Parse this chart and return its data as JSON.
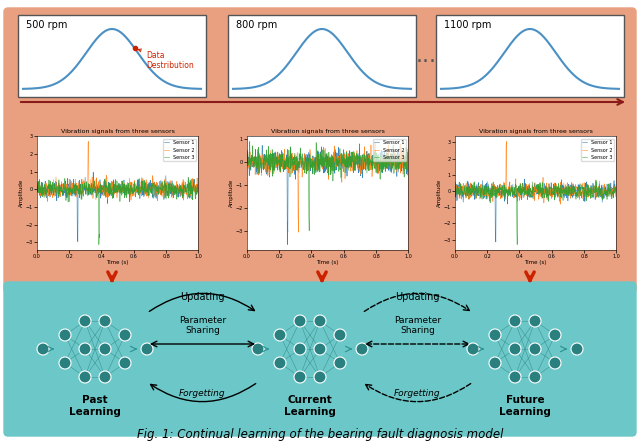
{
  "bg_color": "#ffffff",
  "salmon_bg": "#e8a080",
  "teal_bg": "#6cc8c8",
  "panel_bg": "#ffffff",
  "node_color": "#2a7f7f",
  "node_edge": "#ffffff",
  "arrow_color": "#cc2200",
  "line_color": "#333333",
  "teal_line": "#2a9090",
  "caption": "Fig. 1: Continual learning of the bearing fault diagnosis model",
  "rpm_labels": [
    "500 rpm",
    "800 rpm",
    "1100 rpm"
  ],
  "sensor_title": "Vibration signals from three sensors",
  "sensor_labels": [
    "Sensor 1",
    "Sensor 2",
    "Sensor 3"
  ],
  "sensor_colors": [
    "#1f77b4",
    "#ff7f0e",
    "#2ca02c"
  ],
  "past_label": "Past\nLearning",
  "current_label": "Current\nLearning",
  "future_label": "Future\nLearning",
  "updating_label": "Updating",
  "param_label": "Parameter\nSharing",
  "forgetting_label": "Forgetting",
  "data_dist_label": "Data\nDestribution"
}
